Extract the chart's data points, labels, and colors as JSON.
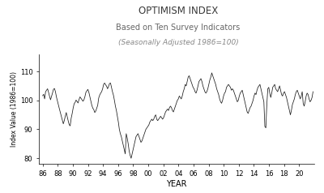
{
  "title": "OPTIMISM INDEX",
  "subtitle1": "Based on Ten Survey Indicators",
  "subtitle2": "(Seasonally Adjusted 1986=100)",
  "xlabel": "YEAR",
  "ylabel": "Index Value (1986=100)",
  "title_color": "#3a3a3a",
  "subtitle1_color": "#666666",
  "subtitle2_color": "#888888",
  "line_color": "#1a1a1a",
  "background_color": "#ffffff",
  "ylim": [
    78,
    116
  ],
  "yticks": [
    80,
    90,
    100,
    110
  ],
  "values": [
    101.6,
    102.1,
    100.5,
    103.0,
    103.5,
    104.0,
    102.8,
    101.4,
    100.2,
    101.3,
    102.5,
    103.8,
    104.1,
    103.0,
    101.2,
    99.8,
    98.5,
    97.1,
    95.8,
    94.6,
    93.1,
    91.9,
    93.0,
    94.5,
    95.8,
    94.3,
    92.9,
    91.6,
    91.2,
    93.8,
    95.4,
    97.3,
    98.8,
    99.3,
    100.1,
    99.6,
    99.1,
    100.3,
    101.2,
    100.7,
    100.2,
    99.7,
    100.2,
    101.3,
    102.8,
    103.3,
    103.8,
    102.8,
    101.3,
    99.8,
    98.3,
    97.3,
    96.8,
    95.8,
    96.3,
    97.3,
    98.3,
    100.8,
    101.8,
    102.5,
    103.0,
    104.0,
    105.5,
    106.0,
    105.4,
    104.9,
    104.0,
    104.8,
    105.8,
    106.0,
    104.5,
    103.0,
    101.8,
    100.0,
    98.0,
    96.5,
    94.5,
    92.5,
    90.0,
    88.5,
    87.5,
    86.0,
    84.5,
    83.0,
    81.5,
    88.5,
    87.0,
    85.0,
    82.5,
    81.0,
    80.0,
    81.5,
    83.0,
    84.5,
    86.0,
    87.5,
    88.0,
    88.5,
    87.5,
    86.5,
    85.5,
    86.0,
    87.0,
    88.0,
    89.0,
    90.0,
    90.5,
    91.0,
    91.5,
    92.5,
    93.0,
    93.5,
    93.0,
    93.5,
    94.5,
    95.0,
    93.5,
    93.0,
    93.5,
    94.0,
    94.5,
    94.0,
    93.5,
    94.0,
    95.0,
    96.0,
    96.5,
    97.0,
    96.5,
    97.5,
    98.0,
    97.5,
    96.5,
    96.0,
    97.0,
    98.0,
    99.0,
    100.0,
    100.5,
    101.5,
    101.0,
    100.5,
    101.5,
    103.0,
    104.0,
    105.5,
    105.0,
    106.5,
    108.0,
    108.5,
    107.5,
    106.5,
    105.5,
    104.5,
    104.0,
    103.0,
    102.5,
    103.5,
    105.0,
    106.5,
    107.0,
    107.5,
    106.5,
    105.0,
    104.0,
    103.0,
    102.5,
    103.0,
    104.0,
    105.5,
    107.0,
    108.0,
    109.5,
    108.5,
    107.5,
    106.5,
    105.5,
    104.0,
    103.0,
    102.0,
    100.5,
    99.5,
    99.0,
    100.0,
    101.5,
    102.5,
    103.0,
    104.5,
    105.0,
    105.5,
    105.0,
    104.5,
    103.5,
    104.0,
    103.5,
    102.5,
    101.5,
    100.5,
    99.5,
    100.0,
    101.5,
    102.5,
    103.0,
    103.5,
    102.0,
    100.5,
    99.0,
    97.5,
    96.0,
    95.5,
    96.5,
    97.5,
    98.0,
    99.0,
    100.0,
    101.5,
    102.5,
    102.0,
    103.5,
    104.5,
    105.0,
    105.5,
    104.0,
    102.5,
    101.0,
    99.5,
    91.0,
    90.5,
    98.5,
    104.0,
    104.5,
    102.5,
    101.0,
    102.5,
    104.5,
    105.0,
    105.5,
    104.0,
    103.5,
    103.0,
    104.0,
    105.0,
    103.5,
    102.0,
    101.5,
    102.5,
    103.0,
    102.0,
    101.0,
    99.5,
    98.0,
    96.5,
    95.0,
    96.5,
    98.5,
    99.5,
    100.5,
    102.0,
    103.0,
    103.5,
    102.5,
    101.5,
    100.5,
    101.5,
    103.0,
    99.0,
    98.0,
    99.5,
    101.5,
    102.5,
    102.0,
    100.5,
    99.5,
    100.0,
    101.0,
    103.0
  ]
}
